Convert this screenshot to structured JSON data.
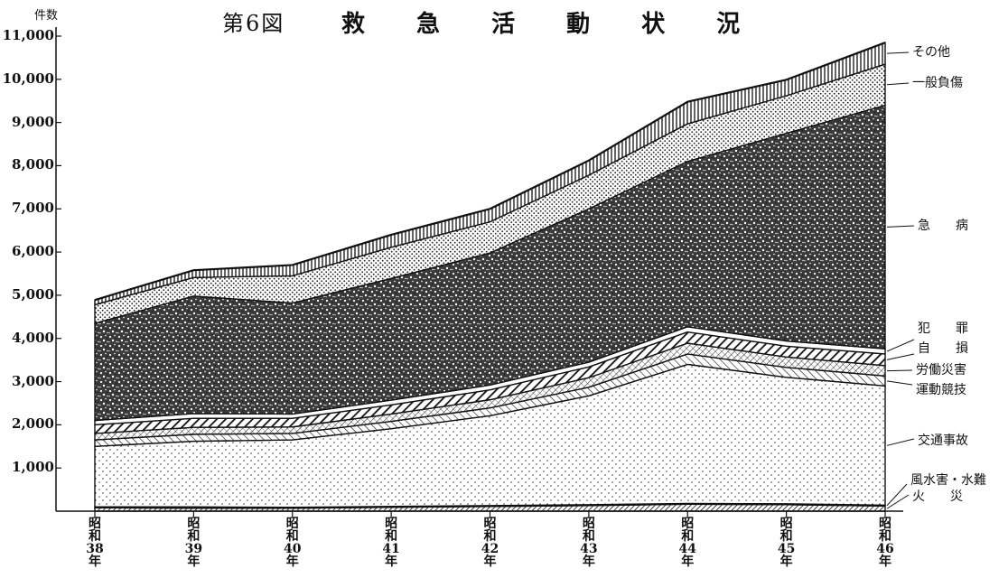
{
  "title": {
    "figure_no": "第6図",
    "text": "救 急 活 動 状 況"
  },
  "chart_data": {
    "type": "area",
    "stacked": true,
    "ylabel": "件数",
    "ylim": [
      0,
      11000
    ],
    "yticks": [
      "1,000",
      "2,000",
      "3,000",
      "4,000",
      "5,000",
      "6,000",
      "7,000",
      "8,000",
      "9,000",
      "10,000",
      "11,000"
    ],
    "categories": [
      {
        "era": "昭",
        "wa": "和",
        "num": "38",
        "nen": "年"
      },
      {
        "era": "昭",
        "wa": "和",
        "num": "39",
        "nen": "年"
      },
      {
        "era": "昭",
        "wa": "和",
        "num": "40",
        "nen": "年"
      },
      {
        "era": "昭",
        "wa": "和",
        "num": "41",
        "nen": "年"
      },
      {
        "era": "昭",
        "wa": "和",
        "num": "42",
        "nen": "年"
      },
      {
        "era": "昭",
        "wa": "和",
        "num": "43",
        "nen": "年"
      },
      {
        "era": "昭",
        "wa": "和",
        "num": "44",
        "nen": "年"
      },
      {
        "era": "昭",
        "wa": "和",
        "num": "45",
        "nen": "年"
      },
      {
        "era": "昭",
        "wa": "和",
        "num": "46",
        "nen": "年"
      }
    ],
    "series": [
      {
        "name": "火　　災",
        "pattern": "hatch-fine",
        "values": [
          80,
          70,
          70,
          90,
          110,
          130,
          160,
          150,
          120
        ]
      },
      {
        "name": "風水害・水難",
        "pattern": "white",
        "values": [
          20,
          30,
          20,
          20,
          20,
          20,
          20,
          20,
          20
        ]
      },
      {
        "name": "交通事故",
        "pattern": "dots",
        "values": [
          1400,
          1520,
          1560,
          1800,
          2080,
          2520,
          3220,
          2930,
          2760
        ]
      },
      {
        "name": "運動競技",
        "pattern": "hatch-diag",
        "values": [
          150,
          160,
          150,
          170,
          180,
          200,
          240,
          230,
          230
        ]
      },
      {
        "name": "労働災害",
        "pattern": "hatch-cross",
        "values": [
          150,
          160,
          150,
          170,
          190,
          220,
          250,
          240,
          240
        ]
      },
      {
        "name": "自　　損",
        "pattern": "hatch-bold",
        "values": [
          200,
          210,
          200,
          210,
          230,
          250,
          260,
          250,
          270
        ]
      },
      {
        "name": "犯　　罪",
        "pattern": "white",
        "values": [
          100,
          110,
          100,
          110,
          110,
          110,
          120,
          120,
          120
        ]
      },
      {
        "name": "急　　病",
        "pattern": "speckle",
        "values": [
          2250,
          2720,
          2570,
          2820,
          3060,
          3550,
          3830,
          4810,
          5640
        ]
      },
      {
        "name": "一般負傷",
        "pattern": "dots-dense",
        "values": [
          430,
          430,
          630,
          720,
          720,
          780,
          870,
          870,
          950
        ]
      },
      {
        "name": "その他",
        "pattern": "vertical",
        "values": [
          110,
          170,
          250,
          290,
          300,
          340,
          510,
          370,
          500
        ]
      }
    ],
    "grid": false
  },
  "colors": {
    "ink": "#111111",
    "paper": "#ffffff"
  }
}
